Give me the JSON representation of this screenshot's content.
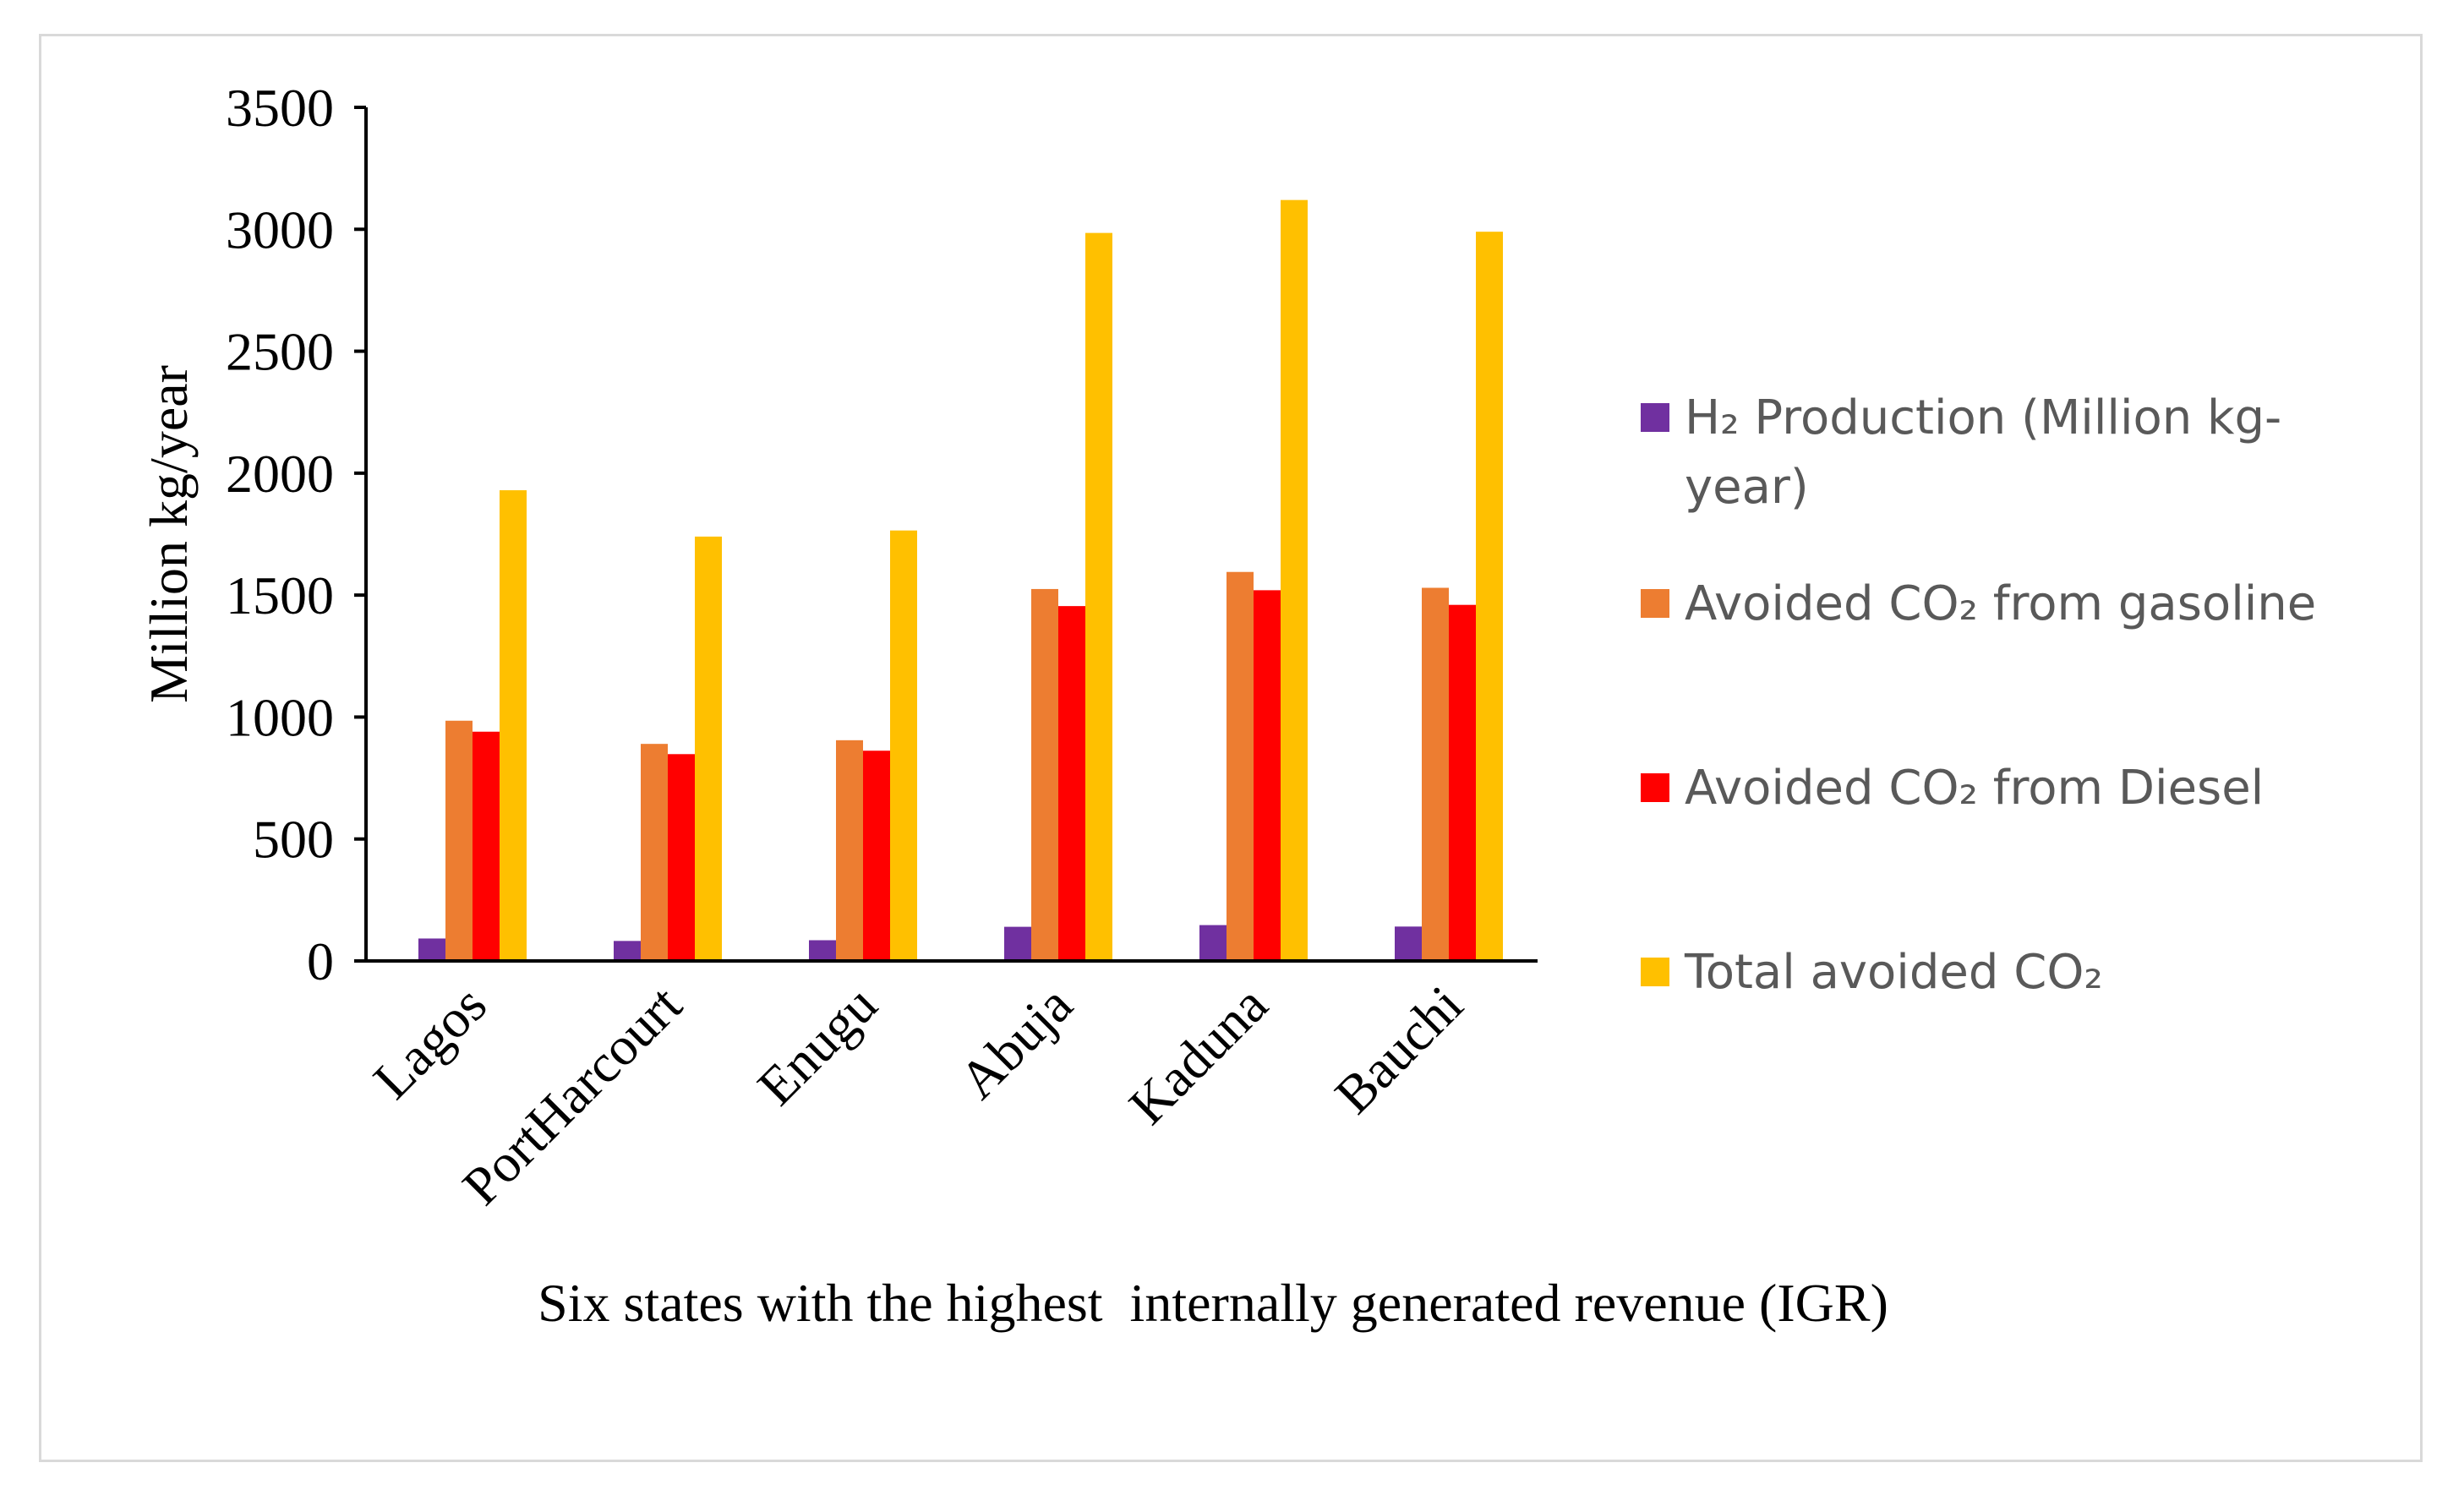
{
  "chart_data": {
    "type": "bar",
    "title": "",
    "xlabel": "Six states with the highest  internally generated revenue (IGR)",
    "ylabel": "Million kg/year",
    "ylim": [
      0,
      3500
    ],
    "yticks": [
      0,
      500,
      1000,
      1500,
      2000,
      2500,
      3000,
      3500
    ],
    "ytick_labels": [
      "0",
      "500",
      "1000",
      "1500",
      "2000",
      "2500",
      "3000",
      "3500"
    ],
    "grid": false,
    "legend_position": "right",
    "categories": [
      "Lagos",
      "PortHarcourt",
      "Enugu",
      "Abuja",
      "Kaduna",
      "Bauchi"
    ],
    "series": [
      {
        "name": "H₂ Production (Million kg-year)",
        "legend_lines": [
          "H₂ Production (Million kg-",
          "year)"
        ],
        "color": "#7030a0",
        "values": [
          92,
          82,
          85,
          140,
          147,
          141
        ]
      },
      {
        "name": "Avoided CO₂ from gasoline",
        "legend_lines": [
          " Avoided CO₂  from gasoline"
        ],
        "color": "#ed7d31",
        "values": [
          985,
          890,
          905,
          1525,
          1595,
          1530
        ]
      },
      {
        "name": "Avoided CO₂ from Diesel",
        "legend_lines": [
          "Avoided CO₂  from Diesel"
        ],
        "color": "#ff0000",
        "values": [
          940,
          848,
          862,
          1455,
          1520,
          1460
        ]
      },
      {
        "name": "Total avoided CO₂",
        "legend_lines": [
          "Total avoided CO₂"
        ],
        "color": "#ffc000",
        "values": [
          1930,
          1740,
          1765,
          2985,
          3120,
          2990
        ]
      }
    ]
  }
}
